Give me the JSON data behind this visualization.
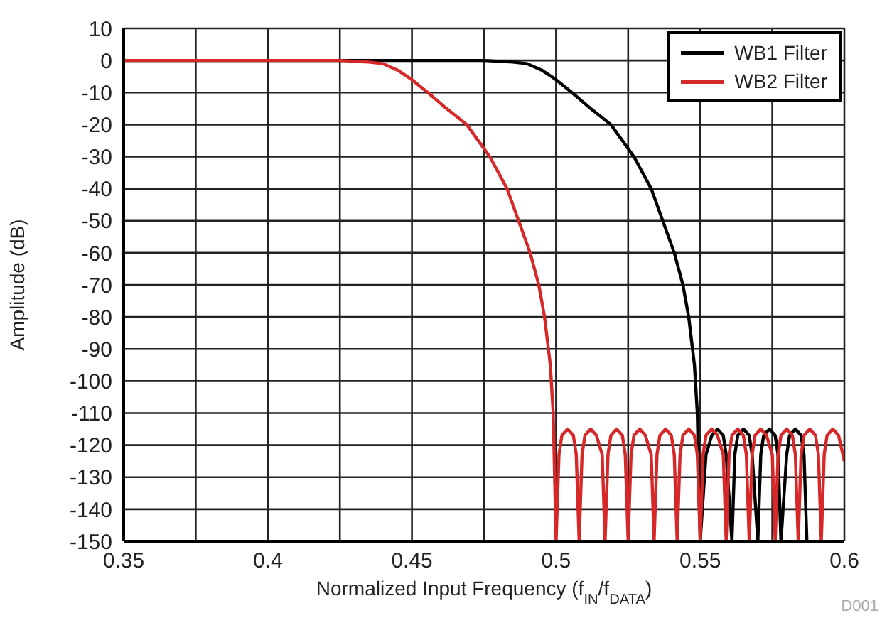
{
  "chart_data": {
    "type": "line",
    "xlabel": "Normalized Input Frequency (f$_{IN}$/f$_{DATA}$)",
    "ylabel": "Amplitude (dB)",
    "xlim": [
      0.35,
      0.6
    ],
    "xticks": [
      0.35,
      {
        "value": 0.375,
        "label": null
      },
      0.4,
      {
        "value": 0.425,
        "label": null
      },
      0.45,
      {
        "value": 0.475,
        "label": null
      },
      0.5,
      {
        "value": 0.525,
        "label": null
      },
      0.55,
      {
        "value": 0.575,
        "label": null
      },
      0.6
    ],
    "ylim": [
      -150,
      10
    ],
    "yticks": [
      -150,
      -140,
      -130,
      -120,
      -110,
      -100,
      -90,
      -80,
      -70,
      -60,
      -50,
      -40,
      -30,
      -20,
      -10,
      0,
      10
    ],
    "grid": true,
    "legend": "top right",
    "marker": "none",
    "line_style": "solid",
    "series": [
      {
        "name": "WB1 Filter",
        "color": "#000000",
        "x": [
          0.35,
          0.475,
          0.485,
          0.49,
          0.495,
          0.5,
          0.5055,
          0.512,
          0.519,
          0.527,
          0.533,
          0.537,
          0.541,
          0.544,
          0.546,
          0.548,
          0.549,
          0.55,
          0.552,
          0.554,
          0.556,
          0.558,
          0.559,
          0.561,
          0.562,
          0.563,
          0.565,
          0.567,
          0.568,
          0.57,
          0.571,
          0.572,
          0.574,
          0.576,
          0.577,
          0.578,
          0.58,
          0.581,
          0.583,
          0.585,
          0.586,
          0.587
        ],
        "values": [
          0,
          0,
          -0.5,
          -1,
          -3,
          -6,
          -10,
          -15,
          -20,
          -30,
          -40,
          -50,
          -60,
          -70,
          -80,
          -95,
          -110,
          -150,
          -123,
          -117,
          -115,
          -117,
          -123,
          -150,
          -123,
          -117,
          -115,
          -117,
          -123,
          -150,
          -123,
          -117,
          -115,
          -117,
          -123,
          -150,
          -123,
          -117,
          -115,
          -117,
          -123,
          -150
        ]
      },
      {
        "name": "WB2 Filter",
        "color": "#d62828",
        "x": [
          0.35,
          0.425,
          0.435,
          0.44,
          0.445,
          0.45,
          0.4555,
          0.462,
          0.469,
          0.477,
          0.483,
          0.487,
          0.491,
          0.494,
          0.496,
          0.498,
          0.499,
          0.5,
          0.501,
          0.502,
          0.504,
          0.506,
          0.507,
          0.508,
          0.509,
          0.51,
          0.512,
          0.514,
          0.516,
          0.517,
          0.518,
          0.519,
          0.521,
          0.523,
          0.524,
          0.525,
          0.526,
          0.527,
          0.529,
          0.531,
          0.533,
          0.534,
          0.535,
          0.536,
          0.538,
          0.54,
          0.541,
          0.542,
          0.543,
          0.544,
          0.546,
          0.548,
          0.549,
          0.55,
          0.551,
          0.552,
          0.554,
          0.556,
          0.558,
          0.559,
          0.56,
          0.561,
          0.563,
          0.565,
          0.566,
          0.567,
          0.568,
          0.569,
          0.571,
          0.573,
          0.575,
          0.576,
          0.577,
          0.578,
          0.58,
          0.582,
          0.583,
          0.584,
          0.585,
          0.586,
          0.588,
          0.59,
          0.591,
          0.592,
          0.593,
          0.594,
          0.596,
          0.598,
          0.6
        ],
        "values": [
          0,
          0,
          -0.5,
          -1,
          -3,
          -6,
          -10,
          -15,
          -20,
          -30,
          -40,
          -50,
          -60,
          -70,
          -80,
          -95,
          -110,
          -150,
          -123,
          -117,
          -115,
          -117,
          -123,
          -150,
          -123,
          -117,
          -115,
          -117,
          -123,
          -150,
          -123,
          -117,
          -115,
          -117,
          -123,
          -150,
          -123,
          -117,
          -115,
          -117,
          -123,
          -150,
          -123,
          -117,
          -115,
          -117,
          -123,
          -150,
          -123,
          -117,
          -115,
          -117,
          -123,
          -150,
          -123,
          -117,
          -115,
          -117,
          -123,
          -150,
          -123,
          -117,
          -115,
          -117,
          -123,
          -150,
          -123,
          -117,
          -115,
          -117,
          -123,
          -150,
          -123,
          -117,
          -115,
          -117,
          -123,
          -150,
          -123,
          -117,
          -115,
          -117,
          -123,
          -150,
          -123,
          -117,
          -115,
          -117,
          -125
        ]
      }
    ],
    "annotations": [
      "D001"
    ]
  }
}
